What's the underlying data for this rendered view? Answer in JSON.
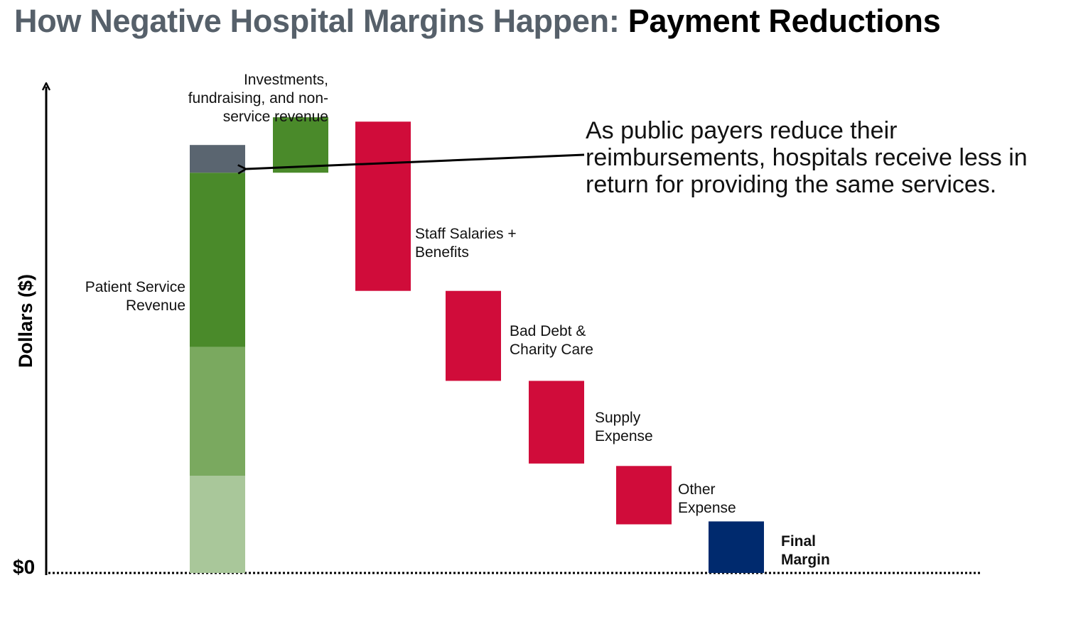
{
  "title": {
    "part1": "How Negative Hospital Margins Happen:",
    "part2": "Payment Reductions"
  },
  "chart_data": {
    "type": "bar",
    "subtype": "waterfall",
    "ylabel": "Dollars ($)",
    "zero_label": "$0",
    "ylim": [
      0,
      100
    ],
    "y_ticks_shown": false,
    "grid": false,
    "baseline_style": "dotted",
    "steps": [
      {
        "label_lines": [
          "Patient Service",
          "Revenue"
        ],
        "kind": "stacked",
        "segments": [
          {
            "start": 0,
            "end": 20,
            "color": "#a9c79a"
          },
          {
            "start": 20,
            "end": 46.5,
            "color": "#7aa95f"
          },
          {
            "start": 46.5,
            "end": 82.3,
            "color": "#4a8a2a"
          },
          {
            "start": 82.3,
            "end": 88,
            "color": "#5a6570",
            "role": "payment reduction"
          }
        ]
      },
      {
        "label_lines": [
          "Investments,",
          "fundraising, and non-",
          "service revenue"
        ],
        "kind": "increase",
        "start": 82.3,
        "end": 93.7,
        "color": "#4a8a2a"
      },
      {
        "label_lines": [
          "Staff Salaries +",
          "Benefits"
        ],
        "kind": "decrease",
        "start": 92.8,
        "end": 58.0,
        "color": "#d00c3a"
      },
      {
        "label_lines": [
          "Bad Debt &",
          "Charity Care"
        ],
        "kind": "decrease",
        "start": 58.0,
        "end": 39.5,
        "color": "#d00c3a"
      },
      {
        "label_lines": [
          "Supply",
          "Expense"
        ],
        "kind": "decrease",
        "start": 39.5,
        "end": 22.5,
        "color": "#d00c3a"
      },
      {
        "label_lines": [
          "Other",
          "Expense"
        ],
        "kind": "decrease",
        "start": 22.0,
        "end": 10.0,
        "color": "#d00c3a"
      },
      {
        "label_lines": [
          "Final",
          "Margin"
        ],
        "kind": "total",
        "start": 0,
        "end": 10.6,
        "color": "#002a6e",
        "label_bold": true
      }
    ],
    "annotation": {
      "lines": [
        "As public payers reduce their",
        "reimbursements, hospitals receive less in",
        "return for providing the same services."
      ],
      "arrow_points_to": "payment reduction"
    }
  }
}
